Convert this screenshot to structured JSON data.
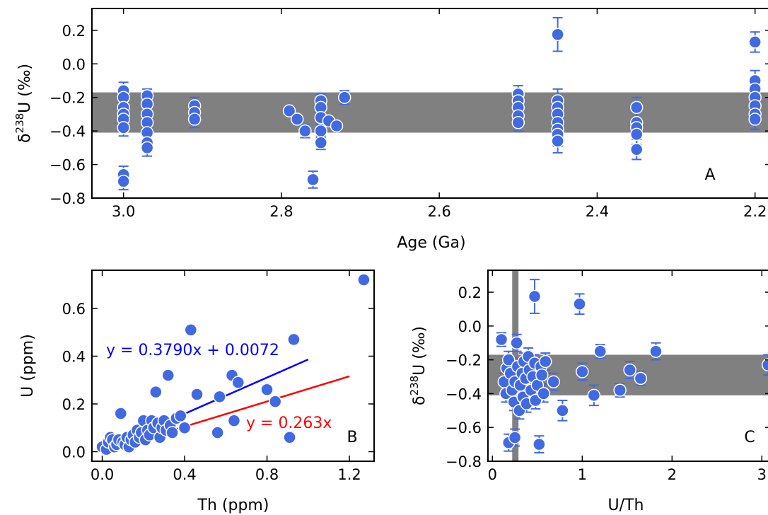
{
  "chart_data": [
    {
      "panel": "A",
      "type": "scatter",
      "xlabel": "Age (Ga)",
      "ylabel_main": "δ",
      "ylabel_sup": "238",
      "ylabel_rest": "U (‰)",
      "xlim": [
        3.04,
        2.18
      ],
      "ylim": [
        -0.8,
        0.33
      ],
      "x_ticks": [
        3.0,
        2.8,
        2.6,
        2.4,
        2.2
      ],
      "x_tick_labels": [
        "3.0",
        "2.8",
        "2.6",
        "2.4",
        "2.2"
      ],
      "y_ticks": [
        0.2,
        0.0,
        -0.2,
        -0.4,
        -0.6,
        -0.8
      ],
      "y_tick_labels": [
        "0.2",
        "0.0",
        "−0.2",
        "−0.4",
        "−0.6",
        "−0.8"
      ],
      "band": [
        -0.41,
        -0.17
      ],
      "band_color": "#808080",
      "point_color": "#4169e1",
      "annotation": "A",
      "points": [
        {
          "x": 3.0,
          "y": -0.16,
          "e": 0.05
        },
        {
          "x": 3.0,
          "y": -0.2,
          "e": 0.05
        },
        {
          "x": 3.0,
          "y": -0.26,
          "e": 0.05
        },
        {
          "x": 3.0,
          "y": -0.3,
          "e": 0.05
        },
        {
          "x": 3.0,
          "y": -0.33,
          "e": 0.05
        },
        {
          "x": 3.0,
          "y": -0.38,
          "e": 0.05
        },
        {
          "x": 3.0,
          "y": -0.66,
          "e": 0.05
        },
        {
          "x": 3.0,
          "y": -0.7,
          "e": 0.05
        },
        {
          "x": 2.97,
          "y": -0.19,
          "e": 0.04
        },
        {
          "x": 2.97,
          "y": -0.24,
          "e": 0.04
        },
        {
          "x": 2.97,
          "y": -0.3,
          "e": 0.04
        },
        {
          "x": 2.97,
          "y": -0.35,
          "e": 0.04
        },
        {
          "x": 2.97,
          "y": -0.41,
          "e": 0.04
        },
        {
          "x": 2.97,
          "y": -0.47,
          "e": 0.04
        },
        {
          "x": 2.97,
          "y": -0.5,
          "e": 0.05
        },
        {
          "x": 2.91,
          "y": -0.25,
          "e": 0.05
        },
        {
          "x": 2.91,
          "y": -0.29,
          "e": 0.05
        },
        {
          "x": 2.91,
          "y": -0.33,
          "e": 0.05
        },
        {
          "x": 2.79,
          "y": -0.28,
          "e": 0.02
        },
        {
          "x": 2.78,
          "y": -0.33,
          "e": 0.02
        },
        {
          "x": 2.77,
          "y": -0.4,
          "e": 0.04
        },
        {
          "x": 2.76,
          "y": -0.69,
          "e": 0.05
        },
        {
          "x": 2.75,
          "y": -0.22,
          "e": 0.04
        },
        {
          "x": 2.75,
          "y": -0.26,
          "e": 0.04
        },
        {
          "x": 2.75,
          "y": -0.32,
          "e": 0.04
        },
        {
          "x": 2.75,
          "y": -0.4,
          "e": 0.04
        },
        {
          "x": 2.75,
          "y": -0.47,
          "e": 0.04
        },
        {
          "x": 2.74,
          "y": -0.34,
          "e": 0.02
        },
        {
          "x": 2.73,
          "y": -0.37,
          "e": 0.02
        },
        {
          "x": 2.72,
          "y": -0.2,
          "e": 0.04
        },
        {
          "x": 2.5,
          "y": -0.18,
          "e": 0.05
        },
        {
          "x": 2.5,
          "y": -0.22,
          "e": 0.05
        },
        {
          "x": 2.5,
          "y": -0.26,
          "e": 0.05
        },
        {
          "x": 2.5,
          "y": -0.31,
          "e": 0.05
        },
        {
          "x": 2.5,
          "y": -0.35,
          "e": 0.05
        },
        {
          "x": 2.45,
          "y": 0.175,
          "e": 0.1
        },
        {
          "x": 2.45,
          "y": -0.22,
          "e": 0.07
        },
        {
          "x": 2.45,
          "y": -0.26,
          "e": 0.07
        },
        {
          "x": 2.45,
          "y": -0.3,
          "e": 0.07
        },
        {
          "x": 2.45,
          "y": -0.35,
          "e": 0.07
        },
        {
          "x": 2.45,
          "y": -0.39,
          "e": 0.07
        },
        {
          "x": 2.45,
          "y": -0.42,
          "e": 0.07
        },
        {
          "x": 2.45,
          "y": -0.46,
          "e": 0.07
        },
        {
          "x": 2.35,
          "y": -0.26,
          "e": 0.06
        },
        {
          "x": 2.35,
          "y": -0.35,
          "e": 0.06
        },
        {
          "x": 2.35,
          "y": -0.38,
          "e": 0.06
        },
        {
          "x": 2.35,
          "y": -0.42,
          "e": 0.06
        },
        {
          "x": 2.35,
          "y": -0.51,
          "e": 0.06
        },
        {
          "x": 2.2,
          "y": 0.13,
          "e": 0.06
        },
        {
          "x": 2.2,
          "y": -0.1,
          "e": 0.06
        },
        {
          "x": 2.2,
          "y": -0.15,
          "e": 0.06
        },
        {
          "x": 2.2,
          "y": -0.2,
          "e": 0.06
        },
        {
          "x": 2.2,
          "y": -0.25,
          "e": 0.06
        },
        {
          "x": 2.2,
          "y": -0.3,
          "e": 0.06
        },
        {
          "x": 2.2,
          "y": -0.33,
          "e": 0.06
        }
      ]
    },
    {
      "panel": "B",
      "type": "scatter",
      "xlabel": "Th (ppm)",
      "ylabel": "U (ppm)",
      "xlim": [
        -0.05,
        1.32
      ],
      "ylim": [
        -0.04,
        0.76
      ],
      "x_ticks": [
        0.0,
        0.4,
        0.8,
        1.2
      ],
      "x_tick_labels": [
        "0.0",
        "0.4",
        "0.8",
        "1.2"
      ],
      "y_ticks": [
        0.0,
        0.2,
        0.4,
        0.6
      ],
      "y_tick_labels": [
        "0.0",
        "0.2",
        "0.4",
        "0.6"
      ],
      "point_color": "#4169e1",
      "annotation": "B",
      "fit_lines": [
        {
          "label": "y = 0.3790x + 0.0072",
          "color": "#0000ff",
          "slope": 0.379,
          "intercept": 0.0072,
          "x_range": [
            0,
            1.0
          ]
        },
        {
          "label": "y = 0.263x",
          "color": "#ff0000",
          "slope": 0.263,
          "intercept": 0.0,
          "x_range": [
            0,
            1.2
          ]
        }
      ],
      "points": [
        {
          "x": 0.0,
          "y": 0.02
        },
        {
          "x": 0.02,
          "y": 0.01
        },
        {
          "x": 0.03,
          "y": 0.04
        },
        {
          "x": 0.04,
          "y": 0.06
        },
        {
          "x": 0.05,
          "y": 0.05
        },
        {
          "x": 0.06,
          "y": 0.02
        },
        {
          "x": 0.07,
          "y": 0.03
        },
        {
          "x": 0.08,
          "y": 0.05
        },
        {
          "x": 0.09,
          "y": 0.16
        },
        {
          "x": 0.1,
          "y": 0.04
        },
        {
          "x": 0.11,
          "y": 0.03
        },
        {
          "x": 0.12,
          "y": 0.06
        },
        {
          "x": 0.13,
          "y": 0.02
        },
        {
          "x": 0.14,
          "y": 0.05
        },
        {
          "x": 0.15,
          "y": 0.07
        },
        {
          "x": 0.16,
          "y": 0.04
        },
        {
          "x": 0.17,
          "y": 0.09
        },
        {
          "x": 0.18,
          "y": 0.06
        },
        {
          "x": 0.19,
          "y": 0.08
        },
        {
          "x": 0.2,
          "y": 0.13
        },
        {
          "x": 0.21,
          "y": 0.05
        },
        {
          "x": 0.22,
          "y": 0.09
        },
        {
          "x": 0.23,
          "y": 0.07
        },
        {
          "x": 0.24,
          "y": 0.13
        },
        {
          "x": 0.25,
          "y": 0.1
        },
        {
          "x": 0.26,
          "y": 0.25
        },
        {
          "x": 0.27,
          "y": 0.12
        },
        {
          "x": 0.28,
          "y": 0.06
        },
        {
          "x": 0.29,
          "y": 0.1
        },
        {
          "x": 0.3,
          "y": 0.13
        },
        {
          "x": 0.31,
          "y": 0.09
        },
        {
          "x": 0.32,
          "y": 0.32
        },
        {
          "x": 0.33,
          "y": 0.11
        },
        {
          "x": 0.34,
          "y": 0.08
        },
        {
          "x": 0.36,
          "y": 0.14
        },
        {
          "x": 0.38,
          "y": 0.15
        },
        {
          "x": 0.4,
          "y": 0.1
        },
        {
          "x": 0.43,
          "y": 0.51
        },
        {
          "x": 0.46,
          "y": 0.24
        },
        {
          "x": 0.56,
          "y": 0.08
        },
        {
          "x": 0.57,
          "y": 0.23
        },
        {
          "x": 0.63,
          "y": 0.32
        },
        {
          "x": 0.64,
          "y": 0.13
        },
        {
          "x": 0.66,
          "y": 0.29
        },
        {
          "x": 0.8,
          "y": 0.26
        },
        {
          "x": 0.84,
          "y": 0.21
        },
        {
          "x": 0.91,
          "y": 0.06
        },
        {
          "x": 0.93,
          "y": 0.47
        },
        {
          "x": 1.27,
          "y": 0.72
        }
      ]
    },
    {
      "panel": "C",
      "type": "scatter",
      "xlabel": "U/Th",
      "ylabel_main": "δ",
      "ylabel_sup": "238",
      "ylabel_rest": "U (‰)",
      "xlim": [
        -0.05,
        3.1
      ],
      "ylim": [
        -0.8,
        0.33
      ],
      "x_ticks": [
        0,
        1,
        2,
        3
      ],
      "x_tick_labels": [
        "0",
        "1",
        "2",
        "3"
      ],
      "y_ticks": [
        0.2,
        0.0,
        -0.2,
        -0.4,
        -0.6,
        -0.8
      ],
      "y_tick_labels": [
        "0.2",
        "0.0",
        "−0.2",
        "−0.4",
        "−0.6",
        "−0.8"
      ],
      "hband": [
        -0.41,
        -0.17
      ],
      "vband": [
        0.22,
        0.29
      ],
      "band_color": "#808080",
      "point_color": "#4169e1",
      "annotation": "C",
      "points": [
        {
          "x": 0.1,
          "y": -0.08,
          "e": 0.04
        },
        {
          "x": 0.13,
          "y": -0.33,
          "e": 0.05
        },
        {
          "x": 0.15,
          "y": -0.4,
          "e": 0.05
        },
        {
          "x": 0.16,
          "y": -0.25,
          "e": 0.05
        },
        {
          "x": 0.18,
          "y": -0.2,
          "e": 0.05
        },
        {
          "x": 0.18,
          "y": -0.69,
          "e": 0.05
        },
        {
          "x": 0.2,
          "y": -0.28,
          "e": 0.05
        },
        {
          "x": 0.22,
          "y": -0.38,
          "e": 0.05
        },
        {
          "x": 0.24,
          "y": -0.45,
          "e": 0.05
        },
        {
          "x": 0.25,
          "y": -0.33,
          "e": 0.05
        },
        {
          "x": 0.25,
          "y": -0.66,
          "e": 0.05
        },
        {
          "x": 0.27,
          "y": -0.1,
          "e": 0.05
        },
        {
          "x": 0.28,
          "y": -0.24,
          "e": 0.05
        },
        {
          "x": 0.3,
          "y": -0.5,
          "e": 0.05
        },
        {
          "x": 0.31,
          "y": -0.35,
          "e": 0.05
        },
        {
          "x": 0.33,
          "y": -0.28,
          "e": 0.05
        },
        {
          "x": 0.34,
          "y": -0.42,
          "e": 0.05
        },
        {
          "x": 0.35,
          "y": -0.21,
          "e": 0.05
        },
        {
          "x": 0.37,
          "y": -0.31,
          "e": 0.05
        },
        {
          "x": 0.38,
          "y": -0.46,
          "e": 0.05
        },
        {
          "x": 0.4,
          "y": -0.18,
          "e": 0.05
        },
        {
          "x": 0.41,
          "y": -0.26,
          "e": 0.05
        },
        {
          "x": 0.43,
          "y": -0.38,
          "e": 0.05
        },
        {
          "x": 0.45,
          "y": -0.3,
          "e": 0.05
        },
        {
          "x": 0.47,
          "y": 0.175,
          "e": 0.1
        },
        {
          "x": 0.47,
          "y": -0.22,
          "e": 0.05
        },
        {
          "x": 0.48,
          "y": -0.44,
          "e": 0.05
        },
        {
          "x": 0.5,
          "y": -0.35,
          "e": 0.05
        },
        {
          "x": 0.52,
          "y": -0.7,
          "e": 0.05
        },
        {
          "x": 0.54,
          "y": -0.24,
          "e": 0.05
        },
        {
          "x": 0.55,
          "y": -0.29,
          "e": 0.05
        },
        {
          "x": 0.57,
          "y": -0.4,
          "e": 0.05
        },
        {
          "x": 0.59,
          "y": -0.21,
          "e": 0.05
        },
        {
          "x": 0.68,
          "y": -0.33,
          "e": 0.05
        },
        {
          "x": 0.78,
          "y": -0.5,
          "e": 0.06
        },
        {
          "x": 0.97,
          "y": 0.13,
          "e": 0.06
        },
        {
          "x": 1.0,
          "y": -0.27,
          "e": 0.05
        },
        {
          "x": 1.13,
          "y": -0.41,
          "e": 0.06
        },
        {
          "x": 1.2,
          "y": -0.15,
          "e": 0.04
        },
        {
          "x": 1.42,
          "y": -0.38,
          "e": 0.04
        },
        {
          "x": 1.53,
          "y": -0.26,
          "e": 0.05
        },
        {
          "x": 1.65,
          "y": -0.31,
          "e": 0.04
        },
        {
          "x": 1.82,
          "y": -0.15,
          "e": 0.05
        },
        {
          "x": 3.07,
          "y": -0.23,
          "e": 0.06
        }
      ]
    }
  ]
}
